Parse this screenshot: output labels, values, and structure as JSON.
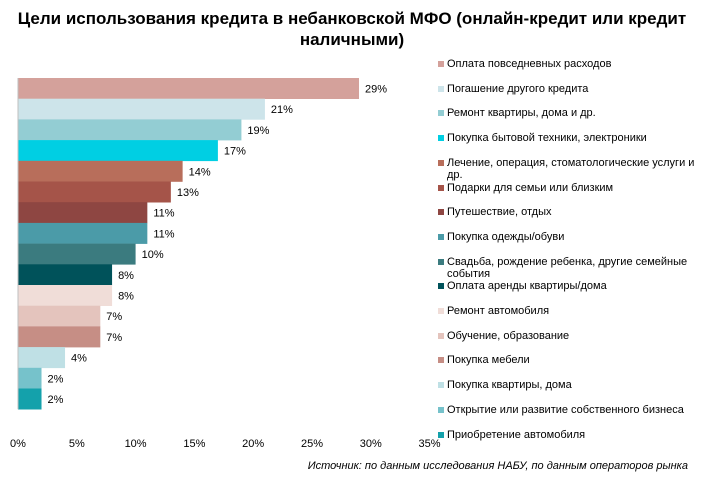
{
  "title": "Цели использования кредита в небанковской МФО (онлайн-кредит или кредит наличными)",
  "source": "Источник: по данным исследования НАБУ, по данным операторов рынка",
  "chart_data": {
    "type": "bar",
    "orientation": "horizontal",
    "xlim": [
      0,
      35
    ],
    "xticks": [
      "0%",
      "5%",
      "10%",
      "15%",
      "20%",
      "25%",
      "30%",
      "35%"
    ],
    "grid": false,
    "legend_position": "right",
    "categories": [
      "Оплата повседневных расходов",
      "Погашение другого кредита",
      "Ремонт квартиры, дома и др.",
      "Покупка бытовой техники, электроники",
      "Лечение, операция, стоматологические услуги и др.",
      "Подарки для семьи или близким",
      "Путешествие, отдых",
      "Покупка одежды/обуви",
      "Свадьба, рождение ребенка, другие семейные события",
      "Оплата аренды квартиры/дома",
      "Ремонт автомобиля",
      "Обучение, образование",
      "Покупка мебели",
      "Покупка квартиры, дома",
      "Открытие или развитие собственного бизнеса",
      "Приобретение автомобиля"
    ],
    "values": [
      29,
      21,
      19,
      17,
      14,
      13,
      11,
      11,
      10,
      8,
      8,
      7,
      7,
      4,
      2,
      2
    ],
    "value_labels": [
      "29%",
      "21%",
      "19%",
      "17%",
      "14%",
      "13%",
      "11%",
      "11%",
      "10%",
      "8%",
      "8%",
      "7%",
      "7%",
      "4%",
      "2%",
      "2%"
    ],
    "colors": [
      "#d4a19b",
      "#cde4ea",
      "#93cdd3",
      "#00cfe3",
      "#b86e5b",
      "#a55449",
      "#8e4642",
      "#4b9ba8",
      "#3b7b7f",
      "#00525a",
      "#f0ddd8",
      "#e4c4bd",
      "#c68e85",
      "#bfe0e5",
      "#76c2cb",
      "#14a1ab"
    ]
  }
}
